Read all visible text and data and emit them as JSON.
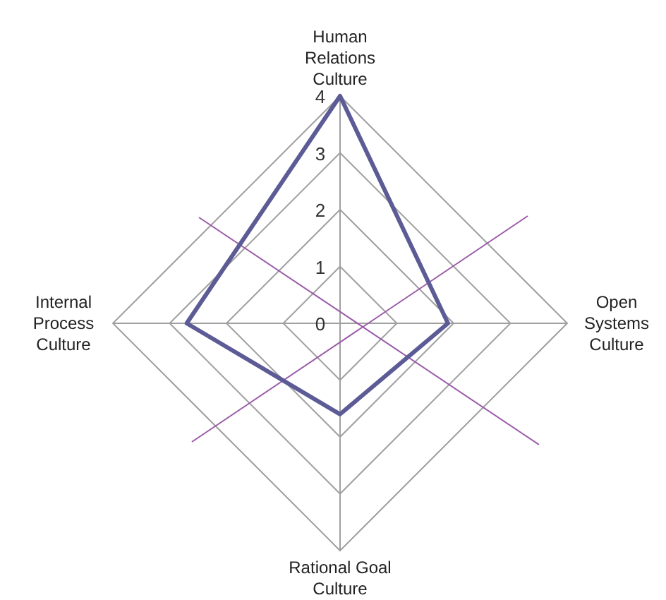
{
  "chart_data": {
    "type": "radar",
    "categories": [
      "Human\nRelations\nCulture",
      "Open\nSystems\nCulture",
      "Rational Goal\nCulture",
      "Internal\nProcess\nCulture"
    ],
    "series": [
      {
        "color": "#5c5b96",
        "values": [
          4,
          1.9,
          1.6,
          2.7
        ]
      }
    ],
    "ylim": [
      0,
      4
    ],
    "yticks": [
      0,
      1,
      2,
      3,
      4
    ],
    "grid": true
  }
}
